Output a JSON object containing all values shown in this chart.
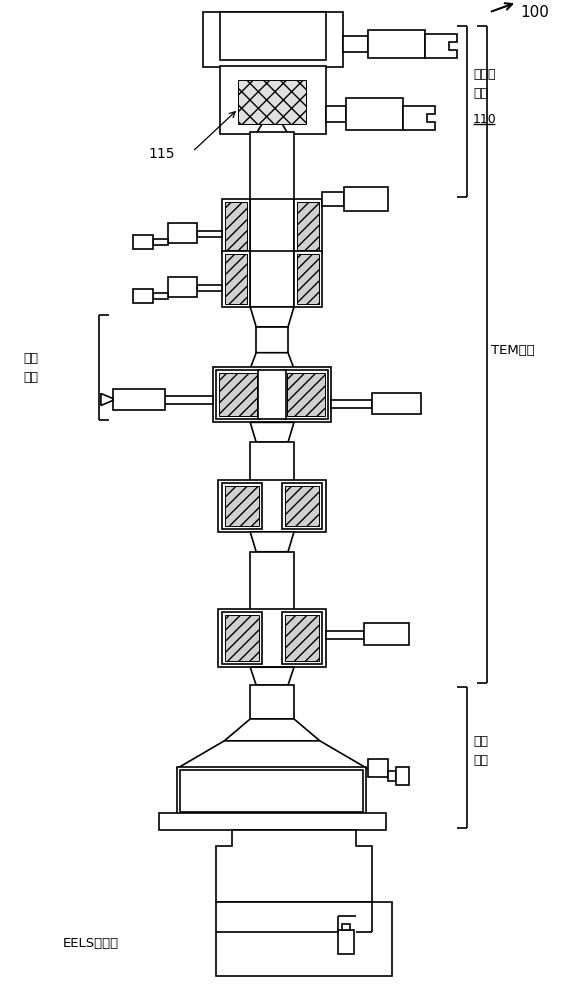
{
  "bg_color": "#ffffff",
  "line_color": "#000000",
  "lw": 1.2,
  "lw_thin": 0.7,
  "label_100": "100",
  "label_115": "115",
  "label_electron_source": "电子源\n区段",
  "label_110": "110",
  "label_tem": "TEM镜筒",
  "label_objective": "物镜\n区段",
  "label_imaging": "成像\n区段",
  "label_eels": "EELS光度计",
  "figsize": [
    5.83,
    10.0
  ],
  "dpi": 100
}
